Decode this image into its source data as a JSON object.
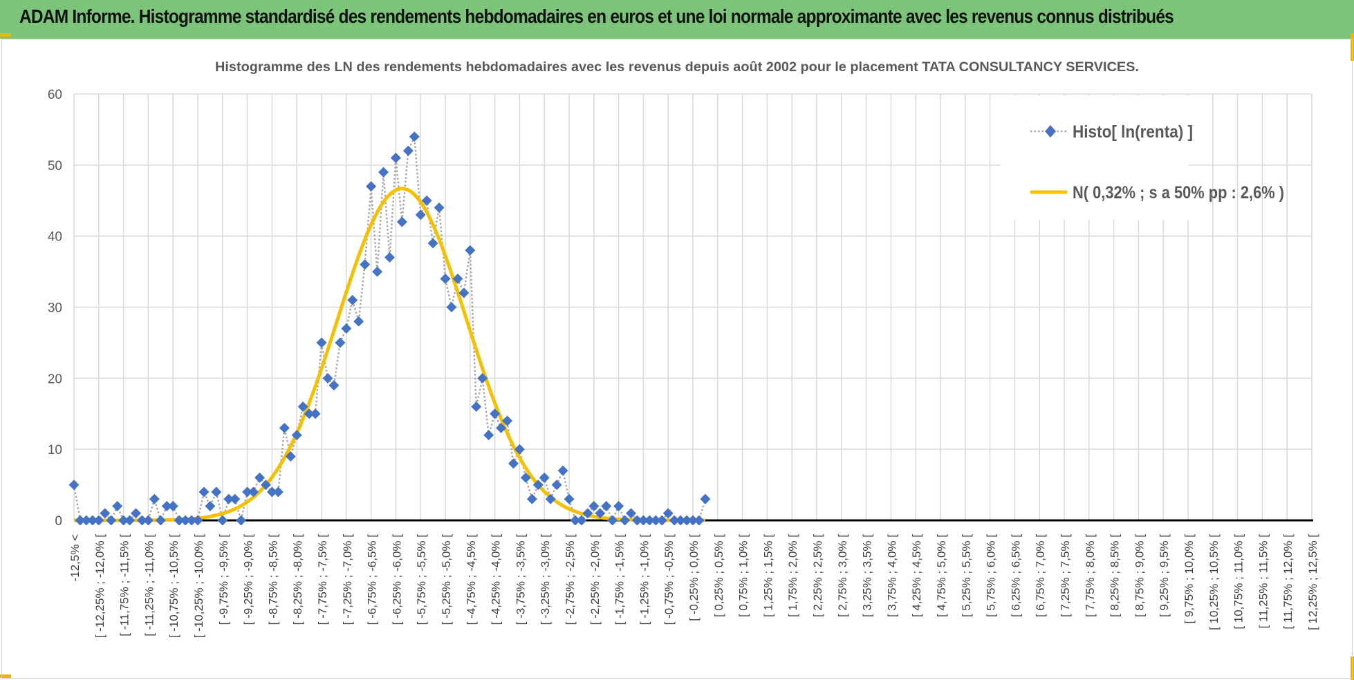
{
  "header": {
    "title": "ADAM Informe. Histogramme standardisé des rendements hebdomadaires en euros et une loi normale approximante avec les revenus connus distribués"
  },
  "colors": {
    "banner": "#7cc47a",
    "marker": "#4472c4",
    "curve": "#f5c000",
    "dotted": "#a6a6a6",
    "grid": "#d9d9d9"
  },
  "chart_data": {
    "type": "line",
    "title": "Histogramme des LN des rendements hebdomadaires avec les revenus depuis août 2002 pour le placement TATA CONSULTANCY SERVICES.",
    "xlabel": "",
    "ylabel": "",
    "ylim": [
      0,
      60
    ],
    "yticks": [
      0,
      10,
      20,
      30,
      40,
      50,
      60
    ],
    "grid": true,
    "legend_position": "top-right",
    "categories": [
      "-12,5% <",
      "[ -12,25% ; -12,0% [",
      "[ -11,75% ; -11,5% [",
      "[ -11,25% ; -11,0% [",
      "[ -10,75% ; -10,5% [",
      "[ -10,25% ; -10,0% [",
      "[ -9,75% ; -9,5% [",
      "[ -9,25% ; -9,0% [",
      "[ -8,75% ; -8,5% [",
      "[ -8,25% ; -8,0% [",
      "[ -7,75% ; -7,5% [",
      "[ -7,25% ; -7,0% [",
      "[ -6,75% ; -6,5% [",
      "[ -6,25% ; -6,0% [",
      "[ -5,75% ; -5,5% [",
      "[ -5,25% ; -5,0% [",
      "[ -4,75% ; -4,5% [",
      "[ -4,25% ; -4,0% [",
      "[ -3,75% ; -3,5% [",
      "[ -3,25% ; -3,0% [",
      "[ -2,75% ; -2,5% [",
      "[ -2,25% ; -2,0% [",
      "[ -1,75% ; -1,5% [",
      "[ -1,25% ; -1,0% [",
      "[ -0,75% ; -0,5% [",
      "[ -0,25% ; 0,0% [",
      "[ 0,25% ; 0,5% [",
      "[ 0,75% ; 1,0% [",
      "[ 1,25% ; 1,5% [",
      "[ 1,75% ; 2,0% [",
      "[ 2,25% ; 2,5% [",
      "[ 2,75% ; 3,0% [",
      "[ 3,25% ; 3,5% [",
      "[ 3,75% ; 4,0% [",
      "[ 4,25% ; 4,5% [",
      "[ 4,75% ; 5,0% [",
      "[ 5,25% ; 5,5% [",
      "[ 5,75% ; 6,0% [",
      "[ 6,25% ; 6,5% [",
      "[ 6,75% ; 7,0% [",
      "[ 7,25% ; 7,5% [",
      "[ 7,75% ; 8,0% [",
      "[ 8,25% ; 8,5% [",
      "[ 8,75% ; 9,0% [",
      "[ 9,25% ; 9,5% [",
      "[ 9,75% ; 10,0% [",
      "[ 10,25% ; 10,5% [",
      "[ 10,75% ; 11,0% [",
      "[ 11,25% ; 11,5% [",
      "[ 11,75% ; 12,0% [",
      "[ 12,25% ; 12,5% ["
    ],
    "series": [
      {
        "name": "Histo[ ln(renta) ]",
        "style": "dotted-line-diamond-markers",
        "points": [
          [
            0,
            5
          ],
          [
            0.5,
            0
          ],
          [
            1,
            0
          ],
          [
            1.5,
            0
          ],
          [
            2,
            0
          ],
          [
            2.5,
            1
          ],
          [
            3,
            0
          ],
          [
            3.5,
            2
          ],
          [
            4,
            0
          ],
          [
            4.5,
            0
          ],
          [
            5,
            1
          ],
          [
            5.5,
            0
          ],
          [
            6,
            0
          ],
          [
            6.5,
            3
          ],
          [
            7,
            0
          ],
          [
            7.5,
            2
          ],
          [
            8,
            2
          ],
          [
            8.5,
            0
          ],
          [
            9,
            0
          ],
          [
            9.5,
            0
          ],
          [
            10,
            0
          ],
          [
            10.5,
            4
          ],
          [
            11,
            2
          ],
          [
            11.5,
            4
          ],
          [
            12,
            0
          ],
          [
            12.5,
            3
          ],
          [
            13,
            3
          ],
          [
            13.5,
            0
          ],
          [
            14,
            4
          ],
          [
            14.5,
            4
          ],
          [
            15,
            6
          ],
          [
            15.5,
            5
          ],
          [
            16,
            4
          ],
          [
            16.5,
            4
          ],
          [
            17,
            13
          ],
          [
            17.5,
            9
          ],
          [
            18,
            12
          ],
          [
            18.5,
            16
          ],
          [
            19,
            15
          ],
          [
            19.5,
            15
          ],
          [
            20,
            25
          ],
          [
            20.5,
            20
          ],
          [
            21,
            19
          ],
          [
            21.5,
            25
          ],
          [
            22,
            27
          ],
          [
            22.5,
            31
          ],
          [
            23,
            28
          ],
          [
            23.5,
            36
          ],
          [
            24,
            47
          ],
          [
            24.5,
            35
          ],
          [
            25,
            49
          ],
          [
            25.5,
            37
          ],
          [
            26,
            51
          ],
          [
            26.5,
            42
          ],
          [
            27,
            52
          ],
          [
            27.5,
            54
          ],
          [
            28,
            43
          ],
          [
            28.5,
            45
          ],
          [
            29,
            39
          ],
          [
            29.5,
            44
          ],
          [
            30,
            34
          ],
          [
            30.5,
            30
          ],
          [
            31,
            34
          ],
          [
            31.5,
            32
          ],
          [
            32,
            38
          ],
          [
            32.5,
            16
          ],
          [
            33,
            20
          ],
          [
            33.5,
            12
          ],
          [
            34,
            15
          ],
          [
            34.5,
            13
          ],
          [
            35,
            14
          ],
          [
            35.5,
            8
          ],
          [
            36,
            10
          ],
          [
            36.5,
            6
          ],
          [
            37,
            3
          ],
          [
            37.5,
            5
          ],
          [
            38,
            6
          ],
          [
            38.5,
            3
          ],
          [
            39,
            5
          ],
          [
            39.5,
            7
          ],
          [
            40,
            3
          ],
          [
            40.5,
            0
          ],
          [
            41,
            0
          ],
          [
            41.5,
            1
          ],
          [
            42,
            2
          ],
          [
            42.5,
            1
          ],
          [
            43,
            2
          ],
          [
            43.5,
            0
          ],
          [
            44,
            2
          ],
          [
            44.5,
            0
          ],
          [
            45,
            1
          ],
          [
            45.5,
            0
          ],
          [
            46,
            0
          ],
          [
            46.5,
            0
          ],
          [
            47,
            0
          ],
          [
            47.5,
            0
          ],
          [
            48,
            1
          ],
          [
            48.5,
            0
          ],
          [
            49,
            0
          ],
          [
            49.5,
            0
          ],
          [
            50,
            0
          ],
          [
            50.5,
            0
          ],
          [
            51,
            3
          ]
        ]
      },
      {
        "name": "N( 0,32% ; s a 50% pp : 2,6% )",
        "style": "smooth-line",
        "normal": {
          "mean_position": 26.5,
          "sigma": 5.2,
          "peak": 46.7,
          "x_min": 0,
          "x_max": 51
        }
      }
    ]
  }
}
